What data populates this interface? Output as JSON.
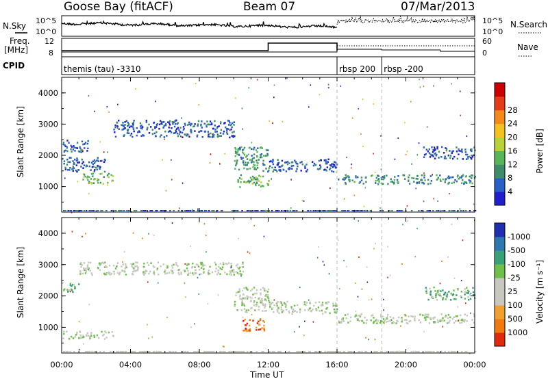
{
  "header": {
    "station": "Goose Bay (fitACF)",
    "beam": "Beam 07",
    "date": "07/Mar/2013"
  },
  "side_labels": {
    "nsky": "N.Sky",
    "freq_line1": "Freq.",
    "freq_line2": "[MHz]",
    "cpid": "CPID",
    "nsearch": "N.Search",
    "nave": "Nave",
    "nsky_ticks": [
      "10^5",
      "10^0"
    ],
    "nsearch_ticks": [
      "10^5",
      "10^0"
    ],
    "freq_ticks": [
      "12",
      "8"
    ],
    "nave_ticks": [
      "60",
      "0"
    ]
  },
  "cpid_segments": [
    {
      "label": "themis (tau) -3310",
      "start_hour": 0,
      "end_hour": 16
    },
    {
      "label": "rbsp 200",
      "start_hour": 16,
      "end_hour": 18.6
    },
    {
      "label": "rbsp -200",
      "start_hour": 18.6,
      "end_hour": 24
    }
  ],
  "chart_data": [
    {
      "type": "heatmap",
      "name": "power",
      "ylabel": "Slant Range [km]",
      "xlabel": "Time UT",
      "x_ticks": [
        "00:00",
        "04:00",
        "08:00",
        "12:00",
        "16:00",
        "20:00",
        "00:00"
      ],
      "y_ticks": [
        "1000",
        "2000",
        "3000",
        "4000"
      ],
      "xlim_hours": [
        0,
        24
      ],
      "ylim_km": [
        180,
        4500
      ],
      "colorbar": {
        "label": "Power [dB]",
        "ticks": [
          "4",
          "8",
          "12",
          "16",
          "20",
          "24",
          "28"
        ],
        "colors": [
          "#1f1fd0",
          "#2a5fc8",
          "#3e8d6a",
          "#57b657",
          "#b9d237",
          "#f3c21f",
          "#f38a1a",
          "#e63b1a",
          "#cc0000"
        ]
      },
      "echo_regions": [
        {
          "t0": 0.0,
          "t1": 1.5,
          "r0": 2100,
          "r1": 2500,
          "level": 1
        },
        {
          "t0": 0.0,
          "t1": 2.5,
          "r0": 1500,
          "r1": 1950,
          "level": 1
        },
        {
          "t0": 1.2,
          "t1": 3.0,
          "r0": 1100,
          "r1": 1450,
          "level": 3
        },
        {
          "t0": 3.0,
          "t1": 10.0,
          "r0": 2600,
          "r1": 3150,
          "level": 1
        },
        {
          "t0": 10.0,
          "t1": 12.0,
          "r0": 1500,
          "r1": 2300,
          "level": 2
        },
        {
          "t0": 10.2,
          "t1": 12.0,
          "r0": 1000,
          "r1": 1400,
          "level": 3
        },
        {
          "t0": 12.0,
          "t1": 16.0,
          "r0": 1500,
          "r1": 1900,
          "level": 1
        },
        {
          "t0": 16.0,
          "t1": 24.0,
          "r0": 1100,
          "r1": 1400,
          "level": 2
        },
        {
          "t0": 21.0,
          "t1": 24.0,
          "r0": 1900,
          "r1": 2300,
          "level": 1
        }
      ]
    },
    {
      "type": "heatmap",
      "name": "velocity",
      "ylabel": "Slant Range [km]",
      "xlabel": "Time UT",
      "x_ticks": [
        "00:00",
        "04:00",
        "08:00",
        "12:00",
        "16:00",
        "20:00",
        "00:00"
      ],
      "y_ticks": [
        "1000",
        "2000",
        "3000",
        "4000"
      ],
      "xlim_hours": [
        0,
        24
      ],
      "ylim_km": [
        180,
        4500
      ],
      "colorbar": {
        "label": "Velocity [m s⁻¹]",
        "ticks": [
          "1000",
          "500",
          "100",
          "25",
          "-25",
          "-100",
          "-500",
          "-1000"
        ],
        "colors": [
          "#1f2fb0",
          "#2f77b0",
          "#3aa07a",
          "#6fc04a",
          "#c8c8c0",
          "#c8c8c0",
          "#f0a030",
          "#f07a10",
          "#e02a10"
        ]
      },
      "echo_regions": [
        {
          "t0": 0.0,
          "t1": 1.0,
          "r0": 2150,
          "r1": 2450,
          "level": 3
        },
        {
          "t0": 1.0,
          "t1": 10.5,
          "r0": 2700,
          "r1": 3100,
          "level": 4
        },
        {
          "t0": 10.0,
          "t1": 12.0,
          "r0": 1500,
          "r1": 2300,
          "level": 4
        },
        {
          "t0": 10.5,
          "t1": 11.8,
          "r0": 900,
          "r1": 1300,
          "level": 7
        },
        {
          "t0": 12.0,
          "t1": 16.0,
          "r0": 1450,
          "r1": 1850,
          "level": 4
        },
        {
          "t0": 16.0,
          "t1": 24.0,
          "r0": 1150,
          "r1": 1450,
          "level": 4
        },
        {
          "t0": 21.0,
          "t1": 24.0,
          "r0": 1900,
          "r1": 2300,
          "level": 3
        },
        {
          "t0": 0.0,
          "t1": 3.0,
          "r0": 650,
          "r1": 900,
          "level": 4
        }
      ]
    }
  ]
}
